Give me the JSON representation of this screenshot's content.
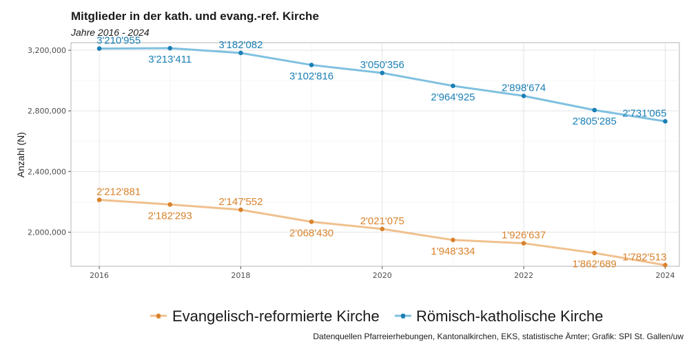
{
  "chart_data": {
    "type": "line",
    "title": "Mitglieder in der kath. und evang.-ref. Kirche",
    "subtitle": "Jahre 2016 - 2024",
    "xlabel": "",
    "ylabel": "Anzahl (N)",
    "x": [
      2016,
      2017,
      2018,
      2019,
      2020,
      2021,
      2022,
      2023,
      2024
    ],
    "xticks": [
      2016,
      2018,
      2020,
      2022,
      2024
    ],
    "yticks": [
      2000000,
      2400000,
      2800000,
      3200000
    ],
    "ytick_labels": [
      "2,000,000",
      "2,400,000",
      "2,800,000",
      "3,200,000"
    ],
    "xlim": [
      2015.6,
      2024.2
    ],
    "ylim": [
      1775000,
      3250000
    ],
    "grid": true,
    "legend_position": "bottom",
    "series": [
      {
        "name": "Evangelisch-reformierte Kirche",
        "color": "#d9822b",
        "line_color": "#f0c08e",
        "values": [
          2212881,
          2182293,
          2147552,
          2068430,
          2021075,
          1948334,
          1926637,
          1862689,
          1782513
        ],
        "labels": [
          "2'212'881",
          "2'182'293",
          "2'147'552",
          "2'068'430",
          "2'021'075",
          "1'948'334",
          "1'926'637",
          "1'862'689",
          "1'782'513"
        ]
      },
      {
        "name": "Römisch-katholische Kirche",
        "color": "#1a7fb5",
        "line_color": "#7fc0e0",
        "values": [
          3210955,
          3213411,
          3182082,
          3102816,
          3050356,
          2964925,
          2898674,
          2805285,
          2731065
        ],
        "labels": [
          "3'210'955",
          "3'213'411",
          "3'182'082",
          "3'102'816",
          "3'050'356",
          "2'964'925",
          "2'898'674",
          "2'805'285",
          "2'731'065"
        ]
      }
    ],
    "legend_key_symbol": "a",
    "caption": "Datenquellen Pfarreierhebungen, Kantonalkirchen, EKS, statistische Ämter; Grafik: SPI St. Gallen/uw"
  }
}
